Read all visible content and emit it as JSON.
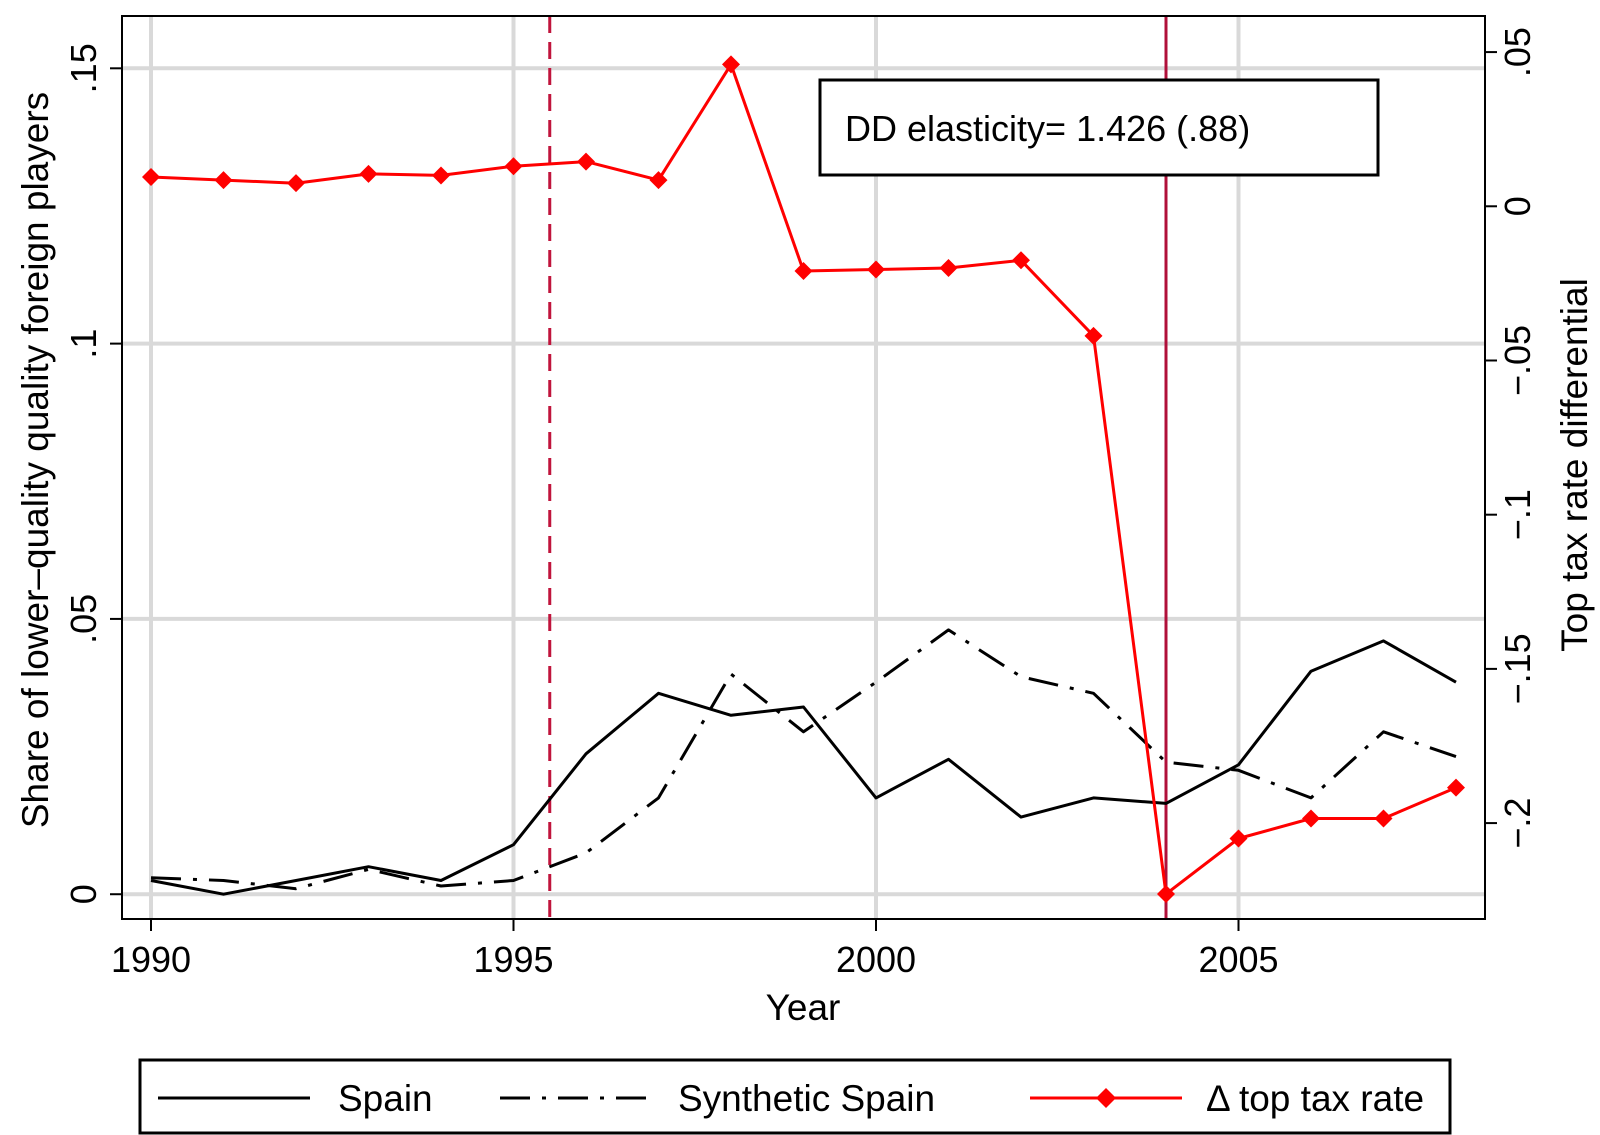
{
  "chart_data": {
    "type": "line",
    "xlabel": "Year",
    "ylabel_left": "Share of lower–quality quality foreign players",
    "ylabel_right": "Top tax rate differential",
    "x_ticks": [
      "1990",
      "1995",
      "2000",
      "2005"
    ],
    "y_left_ticks": [
      "0",
      ".05",
      ".1",
      ".15"
    ],
    "y_right_ticks": [
      ".05",
      "0",
      "−.05",
      "−.1",
      "−.15",
      "−.2"
    ],
    "xlim": [
      1989.6,
      2008.4
    ],
    "ylim_left": [
      -0.0045,
      0.1595
    ],
    "ylim_right": [
      -0.2311,
      0.0617
    ],
    "grid": true,
    "annotation": "DD elasticity= 1.426 (.88)",
    "vlines": [
      {
        "x": 1995.5,
        "style": "dashed",
        "color": "#c0143c"
      },
      {
        "x": 2004,
        "style": "solid",
        "color": "#b0103a"
      }
    ],
    "x": [
      1990,
      1991,
      1992,
      1993,
      1994,
      1995,
      1996,
      1997,
      1998,
      1999,
      2000,
      2001,
      2002,
      2003,
      2004,
      2005,
      2006,
      2007,
      2008
    ],
    "series": [
      {
        "name": "Spain",
        "axis": "left",
        "color": "#000000",
        "style": "solid",
        "values": [
          0.0025,
          0.0,
          0.0025,
          0.005,
          0.0025,
          0.009,
          0.0255,
          0.0365,
          0.0325,
          0.034,
          0.0175,
          0.0245,
          0.014,
          0.0175,
          0.0165,
          0.0235,
          0.0405,
          0.046,
          0.0385
        ]
      },
      {
        "name": "Synthetic Spain",
        "axis": "left",
        "color": "#000000",
        "style": "dashed",
        "values": [
          0.003,
          0.0025,
          0.001,
          0.0045,
          0.0015,
          0.0025,
          0.0075,
          0.0175,
          0.04,
          0.0295,
          0.0385,
          0.048,
          0.0395,
          0.0365,
          0.024,
          0.0225,
          0.0175,
          0.0295,
          0.025
        ]
      },
      {
        "name": "Δ top tax rate",
        "axis": "right",
        "color": "#ff0000",
        "style": "solid-diamond",
        "values": [
          0.0095,
          0.0085,
          0.0075,
          0.0105,
          0.01,
          0.013,
          0.0145,
          0.0085,
          0.046,
          -0.021,
          -0.0205,
          -0.02,
          -0.0175,
          -0.042,
          -0.223,
          -0.205,
          -0.1985,
          -0.1985,
          -0.1885
        ]
      }
    ]
  }
}
